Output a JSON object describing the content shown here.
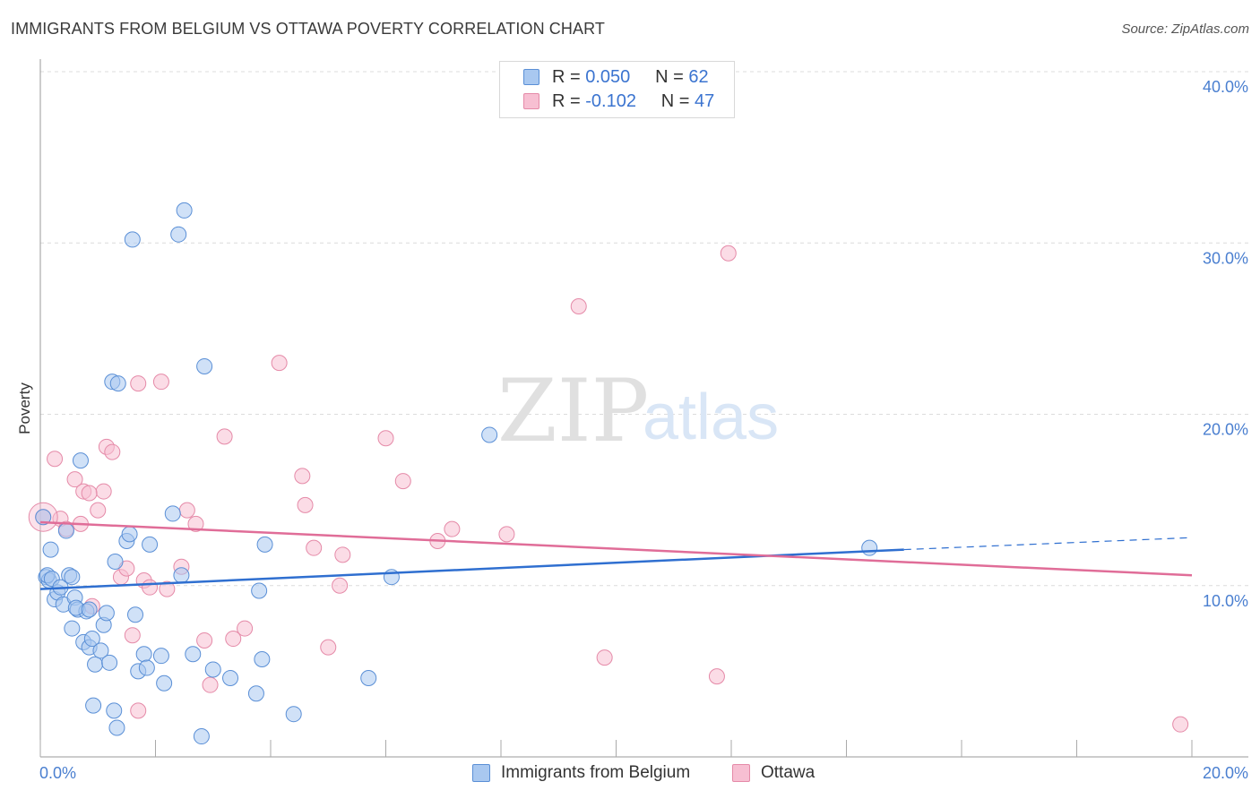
{
  "header": {
    "title": "IMMIGRANTS FROM BELGIUM VS OTTAWA POVERTY CORRELATION CHART",
    "source": "Source: ZipAtlas.com"
  },
  "legend_top": {
    "rows": [
      {
        "r_label": "R =",
        "r_value": "0.050",
        "n_label": "N =",
        "n_value": "62"
      },
      {
        "r_label": "R =",
        "r_value": "-0.102",
        "n_label": "N =",
        "n_value": "47"
      }
    ]
  },
  "legend_bottom": {
    "items": [
      "Immigrants from Belgium",
      "Ottawa"
    ]
  },
  "watermark": {
    "zip": "ZIP",
    "atlas": "atlas"
  },
  "colors": {
    "blue_fill": "#a9c8f0",
    "blue_stroke": "#5a8fd6",
    "blue_line": "#2f6fd0",
    "pink_fill": "#f7bfd2",
    "pink_stroke": "#e58aa8",
    "pink_line": "#e06d98",
    "grid": "#dcdcdc",
    "tick_text": "#4a7fd0"
  },
  "chart_data": {
    "type": "scatter",
    "title": "IMMIGRANTS FROM BELGIUM VS OTTAWA POVERTY CORRELATION CHART",
    "xlabel": "",
    "ylabel": "Poverty",
    "xlim": [
      0,
      20
    ],
    "ylim": [
      0,
      40
    ],
    "x_ticks": [
      "0.0%",
      "20.0%"
    ],
    "y_ticks": [
      "10.0%",
      "20.0%",
      "30.0%",
      "40.0%"
    ],
    "y_tick_values": [
      10,
      20,
      30,
      40
    ],
    "grid": true,
    "legend_position": "top-center",
    "series": [
      {
        "name": "Immigrants from Belgium",
        "color": "#a9c8f0",
        "r": 0.05,
        "n": 62,
        "trend": {
          "x": [
            0,
            15.0
          ],
          "y": [
            9.8,
            12.1
          ],
          "extend_dashed_to": [
            20.0,
            12.8
          ]
        },
        "points": [
          [
            0.1,
            10.5
          ],
          [
            0.15,
            10.3
          ],
          [
            0.12,
            10.6
          ],
          [
            0.2,
            10.4
          ],
          [
            0.25,
            9.2
          ],
          [
            0.3,
            9.6
          ],
          [
            0.35,
            9.9
          ],
          [
            0.4,
            8.9
          ],
          [
            0.45,
            13.2
          ],
          [
            0.5,
            10.6
          ],
          [
            0.55,
            10.5
          ],
          [
            0.6,
            9.3
          ],
          [
            0.65,
            8.6
          ],
          [
            0.7,
            17.3
          ],
          [
            0.75,
            6.7
          ],
          [
            0.8,
            8.5
          ],
          [
            0.85,
            6.4
          ],
          [
            0.9,
            6.9
          ],
          [
            0.95,
            5.4
          ],
          [
            1.05,
            6.2
          ],
          [
            1.1,
            7.7
          ],
          [
            1.15,
            8.4
          ],
          [
            1.2,
            5.5
          ],
          [
            1.25,
            21.9
          ],
          [
            1.3,
            11.4
          ],
          [
            1.35,
            21.8
          ],
          [
            1.5,
            12.6
          ],
          [
            1.55,
            13.0
          ],
          [
            1.6,
            30.2
          ],
          [
            1.65,
            8.3
          ],
          [
            1.7,
            5.0
          ],
          [
            1.8,
            6.0
          ],
          [
            1.85,
            5.2
          ],
          [
            1.9,
            12.4
          ],
          [
            2.1,
            5.9
          ],
          [
            2.15,
            4.3
          ],
          [
            2.3,
            14.2
          ],
          [
            2.4,
            30.5
          ],
          [
            2.45,
            10.6
          ],
          [
            2.5,
            31.9
          ],
          [
            2.65,
            6.0
          ],
          [
            2.85,
            22.8
          ],
          [
            3.0,
            5.1
          ],
          [
            3.3,
            4.6
          ],
          [
            3.75,
            3.7
          ],
          [
            3.8,
            9.7
          ],
          [
            3.85,
            5.7
          ],
          [
            3.9,
            12.4
          ],
          [
            4.4,
            2.5
          ],
          [
            5.7,
            4.6
          ],
          [
            6.1,
            10.5
          ],
          [
            7.8,
            18.8
          ],
          [
            14.4,
            12.2
          ],
          [
            0.55,
            7.5
          ],
          [
            0.92,
            3.0
          ],
          [
            1.28,
            2.7
          ],
          [
            1.33,
            1.7
          ],
          [
            2.8,
            1.2
          ],
          [
            0.18,
            12.1
          ],
          [
            0.62,
            8.7
          ],
          [
            0.85,
            8.6
          ],
          [
            0.05,
            14.0
          ]
        ]
      },
      {
        "name": "Ottawa",
        "color": "#f7bfd2",
        "r": -0.102,
        "n": 47,
        "trend": {
          "x": [
            0,
            20.0
          ],
          "y": [
            13.7,
            10.6
          ]
        },
        "points": [
          [
            0.05,
            14.0
          ],
          [
            0.25,
            17.4
          ],
          [
            0.35,
            13.9
          ],
          [
            0.45,
            13.3
          ],
          [
            0.6,
            16.2
          ],
          [
            0.7,
            13.6
          ],
          [
            0.75,
            15.5
          ],
          [
            0.9,
            8.8
          ],
          [
            1.0,
            14.4
          ],
          [
            1.1,
            15.5
          ],
          [
            1.15,
            18.1
          ],
          [
            1.25,
            17.8
          ],
          [
            1.4,
            10.5
          ],
          [
            1.5,
            11.0
          ],
          [
            1.6,
            7.1
          ],
          [
            1.7,
            2.7
          ],
          [
            1.7,
            21.8
          ],
          [
            1.8,
            10.3
          ],
          [
            1.9,
            9.9
          ],
          [
            2.1,
            21.9
          ],
          [
            2.2,
            9.8
          ],
          [
            2.45,
            11.1
          ],
          [
            2.55,
            14.4
          ],
          [
            2.7,
            13.6
          ],
          [
            2.85,
            6.8
          ],
          [
            2.95,
            4.2
          ],
          [
            3.2,
            18.7
          ],
          [
            3.35,
            6.9
          ],
          [
            3.55,
            7.5
          ],
          [
            4.15,
            23.0
          ],
          [
            4.55,
            16.4
          ],
          [
            4.6,
            14.7
          ],
          [
            4.75,
            12.2
          ],
          [
            5.0,
            6.4
          ],
          [
            5.2,
            10.0
          ],
          [
            5.25,
            11.8
          ],
          [
            6.0,
            18.6
          ],
          [
            6.3,
            16.1
          ],
          [
            6.9,
            12.6
          ],
          [
            7.15,
            13.3
          ],
          [
            8.1,
            13.0
          ],
          [
            9.35,
            26.3
          ],
          [
            9.8,
            5.8
          ],
          [
            11.75,
            4.7
          ],
          [
            11.95,
            29.4
          ],
          [
            19.8,
            1.9
          ],
          [
            0.85,
            15.4
          ]
        ]
      }
    ]
  }
}
